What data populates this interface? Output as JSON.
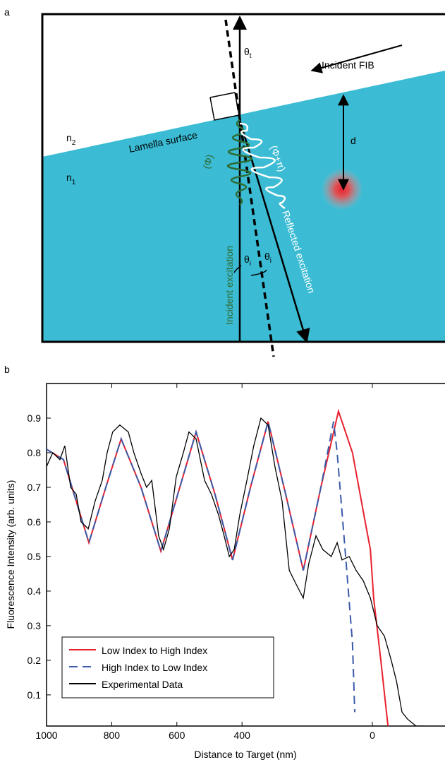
{
  "diagram": {
    "panel_label": "a",
    "incident_fib": "Incident FIB",
    "theta_t": {
      "symbol": "θ",
      "sub": "t"
    },
    "n2": {
      "symbol": "n",
      "sub": "2"
    },
    "n1": {
      "symbol": "n",
      "sub": "1"
    },
    "lamella_surface": "Lamella surface",
    "d": "d",
    "phase_incident": "(Φ)",
    "phase_reflected": "(Φ+π)",
    "incident_excitation": "Incident excitation",
    "reflected_excitation": "Reflected excitation",
    "theta_i_left": {
      "symbol": "θ",
      "sub": "i"
    },
    "theta_i_right": {
      "symbol": "θ",
      "sub": "i"
    }
  },
  "chart_data": {
    "type": "line",
    "panel_label": "b",
    "x_label": "Distance to Target (nm)",
    "y_label": "Fluorescence Intensity (arb. units)",
    "xlim": [
      1000,
      -223
    ],
    "ylim": [
      0.01,
      1.0
    ],
    "xticks": [
      1000,
      800,
      600,
      400,
      0
    ],
    "yticks": [
      0.1,
      0.2,
      0.3,
      0.4,
      0.5,
      0.6,
      0.7,
      0.8,
      0.9
    ],
    "legend": "lower left",
    "series": [
      {
        "name": "Low Index to High Index",
        "color": "#e8202e",
        "dash": false,
        "x": [
          1000,
          948,
          870,
          818,
          771,
          710,
          649,
          591,
          541,
          483,
          429,
          374,
          320,
          266,
          212,
          158,
          104,
          61,
          22,
          6,
          -4,
          -26,
          -48
        ],
        "values": [
          0.81,
          0.78,
          0.54,
          0.7,
          0.84,
          0.7,
          0.515,
          0.7,
          0.86,
          0.68,
          0.49,
          0.7,
          0.89,
          0.68,
          0.46,
          0.7,
          0.92,
          0.8,
          0.6,
          0.52,
          0.38,
          0.2,
          0.01
        ]
      },
      {
        "name": "High Index to Low Index",
        "color": "#3a5ba9",
        "dash": true,
        "x": [
          1000,
          948,
          870,
          818,
          771,
          710,
          649,
          591,
          541,
          483,
          429,
          374,
          320,
          266,
          212,
          158,
          119,
          108,
          82,
          61,
          54
        ],
        "values": [
          0.81,
          0.78,
          0.54,
          0.7,
          0.84,
          0.7,
          0.515,
          0.7,
          0.86,
          0.68,
          0.49,
          0.7,
          0.89,
          0.68,
          0.46,
          0.7,
          0.89,
          0.8,
          0.5,
          0.25,
          0.05
        ]
      },
      {
        "name": "Experimental Data",
        "color": "#000000",
        "dash": false,
        "x": [
          1000,
          981,
          959,
          944,
          926,
          909,
          894,
          872,
          851,
          829,
          814,
          797,
          775,
          749,
          732,
          710,
          693,
          677,
          656,
          641,
          623,
          602,
          580,
          563,
          541,
          515,
          494,
          472,
          455,
          439,
          424,
          407,
          385,
          364,
          342,
          320,
          299,
          277,
          255,
          234,
          212,
          195,
          173,
          152,
          126,
          108,
          93,
          71,
          50,
          28,
          6,
          -15,
          -37,
          -58,
          -74,
          -91,
          -108,
          -134,
          -156
        ],
        "values": [
          0.76,
          0.8,
          0.78,
          0.82,
          0.7,
          0.68,
          0.6,
          0.58,
          0.66,
          0.72,
          0.8,
          0.86,
          0.88,
          0.86,
          0.8,
          0.74,
          0.7,
          0.72,
          0.56,
          0.52,
          0.58,
          0.73,
          0.8,
          0.86,
          0.84,
          0.72,
          0.68,
          0.62,
          0.56,
          0.5,
          0.52,
          0.62,
          0.72,
          0.82,
          0.9,
          0.88,
          0.76,
          0.66,
          0.46,
          0.42,
          0.38,
          0.48,
          0.56,
          0.52,
          0.5,
          0.54,
          0.49,
          0.5,
          0.46,
          0.43,
          0.38,
          0.3,
          0.27,
          0.2,
          0.14,
          0.05,
          0.03,
          0.01,
          0.01
        ]
      }
    ]
  }
}
